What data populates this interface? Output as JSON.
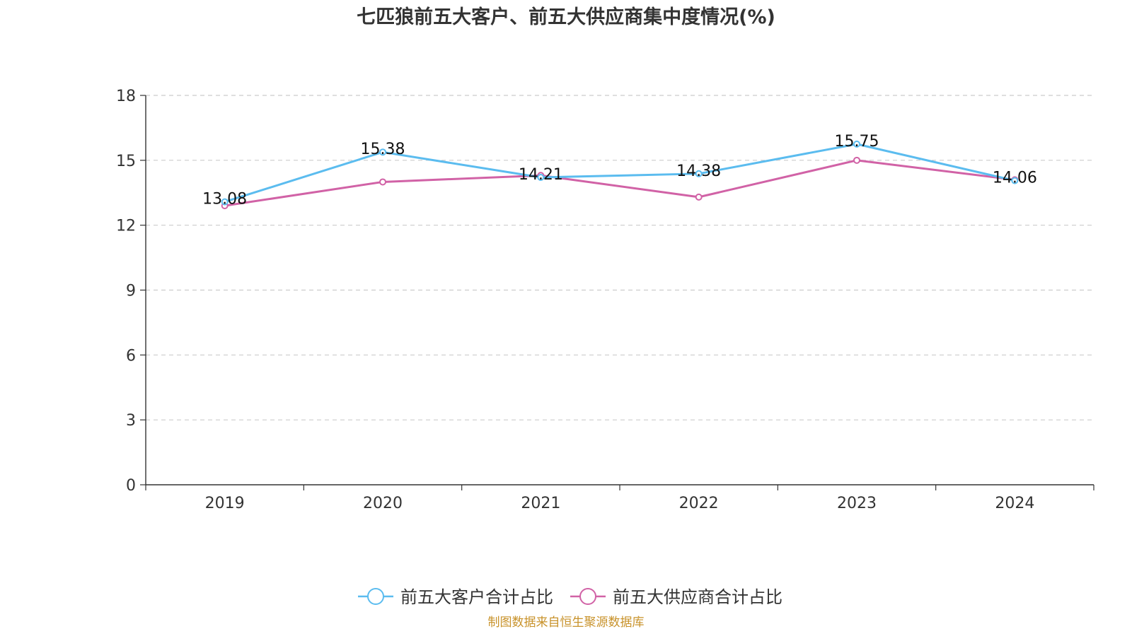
{
  "chart_data": {
    "type": "line",
    "title": "七匹狼前五大客户、前五大供应商集中度情况(%)",
    "categories": [
      "2019",
      "2020",
      "2021",
      "2022",
      "2023",
      "2024"
    ],
    "ylim": [
      0,
      18
    ],
    "yticks": [
      "0",
      "3",
      "6",
      "9",
      "12",
      "15",
      "18"
    ],
    "grid": true,
    "legend_position": "bottom-center",
    "series": [
      {
        "name": "前五大客户合计占比",
        "color": "#5bbcef",
        "values": [
          13.08,
          15.38,
          14.21,
          14.38,
          15.75,
          14.06
        ],
        "labels": [
          "13.08",
          "15.38",
          "14.21",
          "14.38",
          "15.75",
          "14.06"
        ]
      },
      {
        "name": "前五大供应商合计占比",
        "color": "#d162a6",
        "values": [
          12.9,
          14.0,
          14.3,
          13.3,
          15.0,
          14.1
        ]
      }
    ],
    "source": "制图数据来自恒生聚源数据库"
  }
}
